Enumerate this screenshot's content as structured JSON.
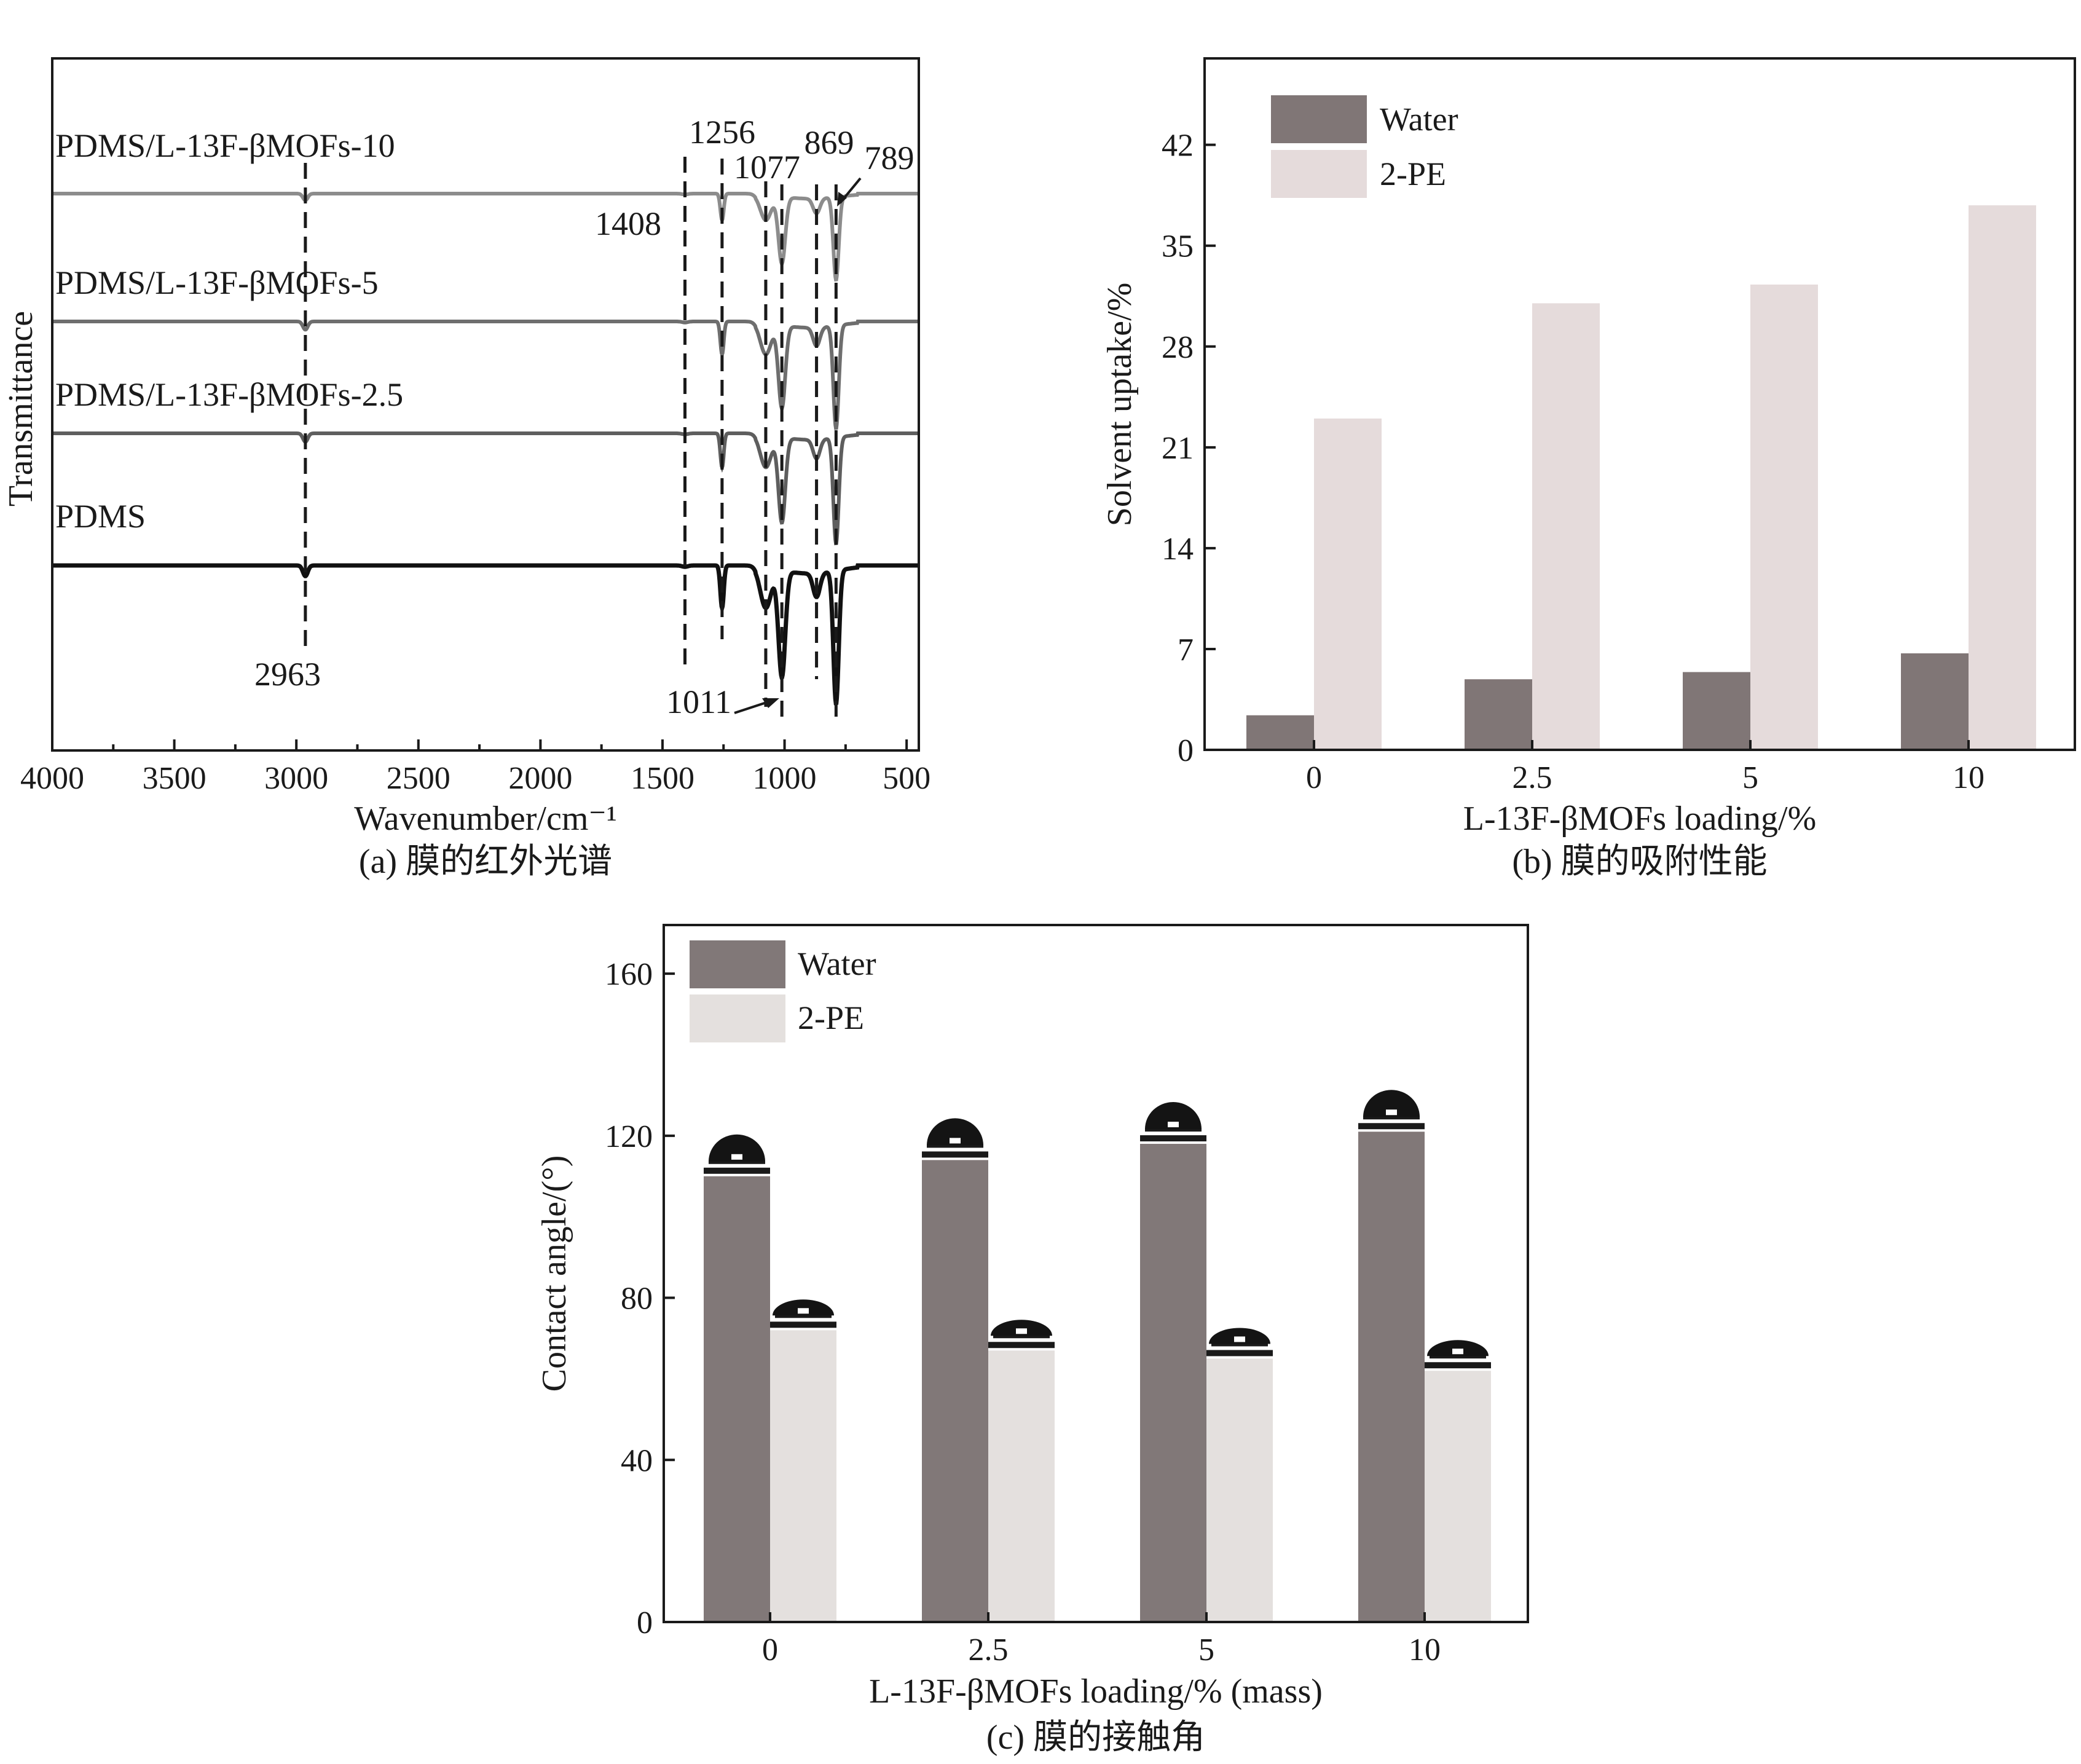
{
  "chart_data": [
    {
      "id": "a",
      "type": "line",
      "caption": "(a) 膜的红外光谱",
      "xlabel": "Wavenumber/cm⁻¹",
      "ylabel": "Transmittance",
      "xlim": [
        4000,
        450
      ],
      "xticks": [
        "4000",
        "3500",
        "3000",
        "2500",
        "2000",
        "1500",
        "1000",
        "500"
      ],
      "series": [
        {
          "name": "PDMS/L-13F-βMOFs-10",
          "color": "#8c8c8c",
          "depth": 0.5
        },
        {
          "name": "PDMS/L-13F-βMOFs-5",
          "color": "#6e6e6e",
          "depth": 0.62
        },
        {
          "name": "PDMS/L-13F-βMOFs-2.5",
          "color": "#5e5e5e",
          "depth": 0.64
        },
        {
          "name": "PDMS",
          "color": "#111111",
          "depth": 0.8
        }
      ],
      "peaks": [
        {
          "label": "2963",
          "wn": 2963,
          "strength": 0.08,
          "width": 10
        },
        {
          "label": "1408",
          "wn": 1408,
          "strength": 0.01,
          "width": 12
        },
        {
          "label": "1256",
          "wn": 1256,
          "strength": 0.32,
          "width": 7
        },
        {
          "label": "1077",
          "wn": 1077,
          "strength": 0.3,
          "width": 22
        },
        {
          "label": "1011",
          "wn": 1011,
          "strength": 0.8,
          "width": 14
        },
        {
          "label": "869",
          "wn": 869,
          "strength": 0.18,
          "width": 14
        },
        {
          "label": "789",
          "wn": 789,
          "strength": 1.0,
          "width": 11
        }
      ]
    },
    {
      "id": "b",
      "type": "bar",
      "caption": "(b) 膜的吸附性能",
      "xlabel": "L-13F-βMOFs loading/%",
      "ylabel": "Solvent uptake/%",
      "ylim": [
        0,
        48
      ],
      "yticks": [
        "0",
        "7",
        "14",
        "21",
        "28",
        "35",
        "42"
      ],
      "categories": [
        "0",
        "2.5",
        "5",
        "10"
      ],
      "series": [
        {
          "name": "Water",
          "color": "#807676",
          "values": [
            2.4,
            4.9,
            5.4,
            6.7
          ]
        },
        {
          "name": "2-PE",
          "color": "#e5dbdb",
          "values": [
            23.0,
            31.0,
            32.3,
            37.8
          ]
        }
      ]
    },
    {
      "id": "c",
      "type": "bar",
      "caption": "(c) 膜的接触角",
      "xlabel": "L-13F-βMOFs loading/% (mass)",
      "ylabel": "Contact angle/(°)",
      "ylim": [
        0,
        172
      ],
      "yticks": [
        "0",
        "40",
        "80",
        "120",
        "160"
      ],
      "categories": [
        "0",
        "2.5",
        "5",
        "10"
      ],
      "series": [
        {
          "name": "Water",
          "color": "#817878",
          "values": [
            110,
            114,
            118,
            121
          ]
        },
        {
          "name": "2-PE",
          "color": "#e4e0de",
          "values": [
            72,
            67,
            65,
            62
          ]
        }
      ]
    }
  ]
}
